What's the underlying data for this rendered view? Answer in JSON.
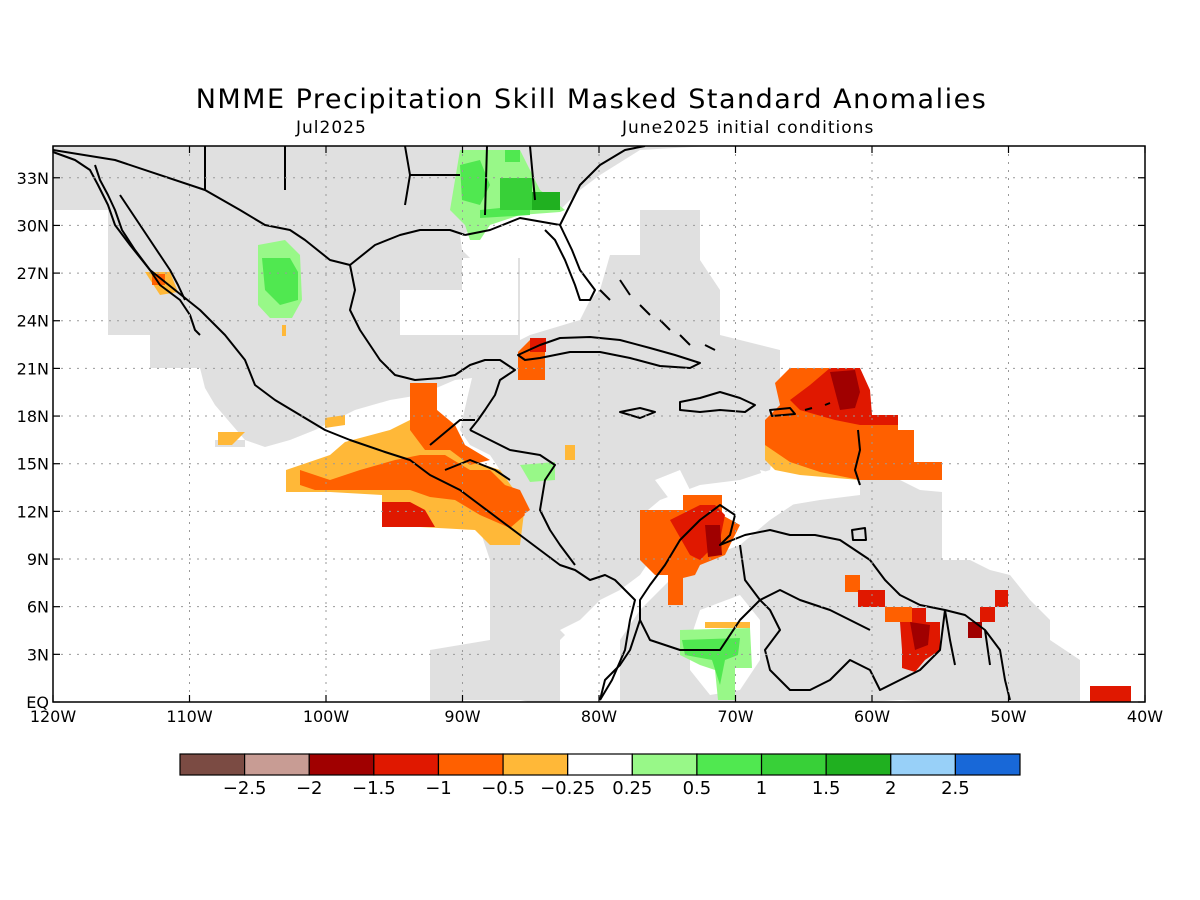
{
  "title": "NMME Precipitation Skill Masked Standard Anomalies",
  "subtitle_left": "Jul2025",
  "subtitle_right": "June2025 initial conditions",
  "map": {
    "lon_range": [
      -120,
      -40
    ],
    "lat_range": [
      0,
      35
    ],
    "x_ticks": [
      {
        "lon": -120,
        "label": "120W"
      },
      {
        "lon": -110,
        "label": "110W"
      },
      {
        "lon": -100,
        "label": "100W"
      },
      {
        "lon": -90,
        "label": "90W"
      },
      {
        "lon": -80,
        "label": "80W"
      },
      {
        "lon": -70,
        "label": "70W"
      },
      {
        "lon": -60,
        "label": "60W"
      },
      {
        "lon": -50,
        "label": "50W"
      },
      {
        "lon": -40,
        "label": "40W"
      }
    ],
    "y_ticks": [
      {
        "lat": 0,
        "label": "EQ"
      },
      {
        "lat": 3,
        "label": "3N"
      },
      {
        "lat": 6,
        "label": "6N"
      },
      {
        "lat": 9,
        "label": "9N"
      },
      {
        "lat": 12,
        "label": "12N"
      },
      {
        "lat": 15,
        "label": "15N"
      },
      {
        "lat": 18,
        "label": "18N"
      },
      {
        "lat": 21,
        "label": "21N"
      },
      {
        "lat": 24,
        "label": "24N"
      },
      {
        "lat": 27,
        "label": "27N"
      },
      {
        "lat": 30,
        "label": "30N"
      },
      {
        "lat": 33,
        "label": "33N"
      }
    ],
    "mask_color": "#e0e0e0"
  },
  "colorbar": {
    "colors": [
      "#7b4b43",
      "#c89c94",
      "#a00000",
      "#e01800",
      "#ff6000",
      "#ffb838",
      "#ffffff",
      "#98f888",
      "#50e850",
      "#38d038",
      "#20b020",
      "#98d0f8",
      "#1868d8"
    ],
    "labels": [
      "−2.5",
      "−2",
      "−1.5",
      "−1",
      "−0.5",
      "−0.25",
      "0.25",
      "0.5",
      "1",
      "1.5",
      "2",
      "2.5"
    ]
  }
}
